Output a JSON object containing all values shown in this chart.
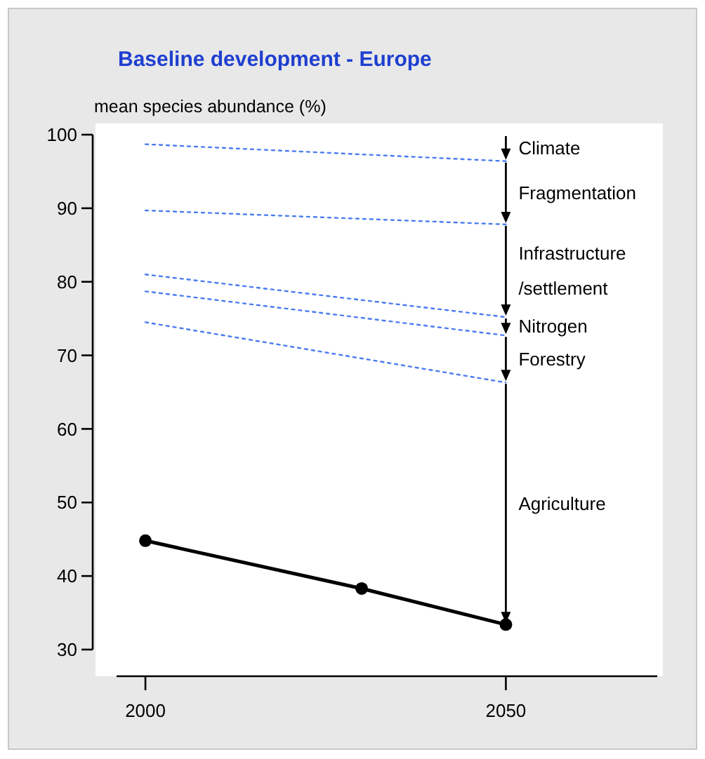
{
  "chart_data": {
    "type": "line",
    "title": "Baseline development - Europe",
    "ylabel": "mean species abundance (%)",
    "xlim": [
      1996,
      2071
    ],
    "xticks": [
      2000,
      2050
    ],
    "ylim": [
      30,
      100
    ],
    "yticks": [
      30,
      40,
      50,
      60,
      70,
      80,
      90,
      100
    ],
    "grid": false,
    "series": [
      {
        "color": "#4a7cf0",
        "line_style": "dotted",
        "marker": "none",
        "x": [
          2000,
          2050
        ],
        "values": [
          98.7,
          96.4
        ]
      },
      {
        "color": "#4a7cf0",
        "line_style": "dotted",
        "marker": "none",
        "x": [
          2000,
          2050
        ],
        "values": [
          89.7,
          87.8
        ]
      },
      {
        "color": "#4a7cf0",
        "line_style": "dotted",
        "marker": "none",
        "x": [
          2000,
          2050
        ],
        "values": [
          81,
          75.2
        ]
      },
      {
        "color": "#4a7cf0",
        "line_style": "dotted",
        "marker": "none",
        "x": [
          2000,
          2050
        ],
        "values": [
          78.7,
          72.7
        ]
      },
      {
        "color": "#4a7cf0",
        "line_style": "dotted",
        "marker": "none",
        "x": [
          2000,
          2050
        ],
        "values": [
          74.5,
          66.3
        ]
      },
      {
        "color": "#000000",
        "line_style": "solid",
        "marker": "circle",
        "x": [
          2000,
          2030,
          2050
        ],
        "values": [
          44.8,
          38.3,
          33.4
        ]
      }
    ],
    "annotations": [
      "Climate",
      "Fragmentation",
      "Infrastructure\n/settlement",
      "Nitrogen",
      "Forestry",
      "Agriculture"
    ]
  }
}
